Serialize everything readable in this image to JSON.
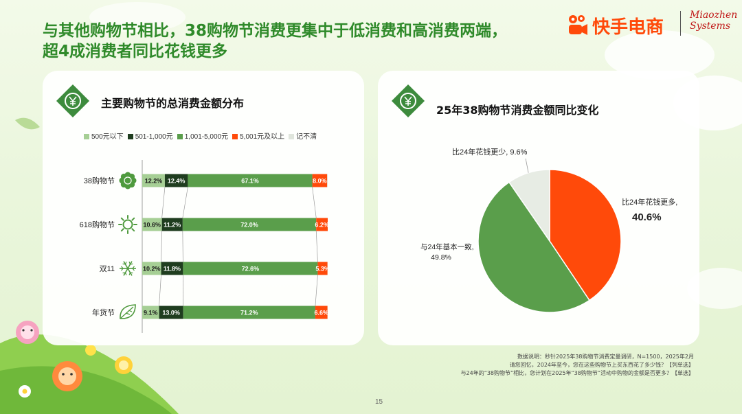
{
  "headline": {
    "line1": "与其他购物节相比，38购物节消费更集中于低消费和高消费两端，",
    "line2": "超4成消费者同比花钱更多"
  },
  "brand": {
    "name": "快手电商",
    "partner_line1": "Miaozhen",
    "partner_line2": "Systems"
  },
  "colors": {
    "title_green": "#2f8a2a",
    "badge_green": "#3d8b3d",
    "light_green": "#a6cf95",
    "dark_green": "#1f3d1f",
    "mid_green": "#5a9e4b",
    "orange": "#ff4a0a",
    "gray": "#dfe5dc"
  },
  "left_panel": {
    "title": "主要购物节的总消费金额分布"
  },
  "right_panel": {
    "title": "25年38购物节消费金额同比变化"
  },
  "chart_data": [
    {
      "type": "bar",
      "orientation": "horizontal",
      "stacked": true,
      "title": "主要购物节的总消费金额分布",
      "categories": [
        "38购物节",
        "618购物节",
        "双11",
        "年货节"
      ],
      "series": [
        {
          "name": "500元以下",
          "values": [
            12.2,
            10.6,
            10.2,
            9.1
          ],
          "color": "#a6cf95",
          "label_color": "#1a1a1a"
        },
        {
          "name": "501-1,000元",
          "values": [
            12.4,
            11.2,
            11.8,
            13.0
          ],
          "color": "#1f3d1f",
          "label_color": "#ffffff"
        },
        {
          "name": "1,001-5,000元",
          "values": [
            67.1,
            72.0,
            72.6,
            71.2
          ],
          "color": "#5a9e4b",
          "label_color": "#ffffff"
        },
        {
          "name": "5,001元及以上",
          "values": [
            8.0,
            6.2,
            5.3,
            6.6
          ],
          "color": "#ff4a0a",
          "label_color": "#ffffff"
        },
        {
          "name": "记不清",
          "values": [
            0.3,
            0.0,
            0.1,
            0.1
          ],
          "color": "#dfe5dc",
          "label_color": "#333333"
        }
      ],
      "data_labels": [
        [
          "12.2%",
          "12.4%",
          "67.1%",
          "8.0%"
        ],
        [
          "10.6%",
          "11.2%",
          "72.0%",
          "6.2%"
        ],
        [
          "10.2%",
          "11.8%",
          "72.6%",
          "5.3%"
        ],
        [
          "9.1%",
          "13.0%",
          "71.2%",
          "6.6%"
        ]
      ],
      "category_icons": [
        "flower-icon",
        "sun-icon",
        "snowflake-icon",
        "leaf-icon"
      ],
      "xlim": [
        0,
        100
      ],
      "legend_position": "top"
    },
    {
      "type": "pie",
      "title": "25年38购物节消费金额同比变化",
      "start_angle": "12 o'clock",
      "direction": "clockwise",
      "slices": [
        {
          "label": "比24年花钱更多,",
          "value": 40.6,
          "value_label": "40.6%",
          "color": "#ff4a0a"
        },
        {
          "label": "与24年基本一致,",
          "value": 49.8,
          "value_label": "49.8%",
          "color": "#5a9e4b"
        },
        {
          "label": "比24年花钱更少, 9.6%",
          "value": 9.6,
          "value_label": "",
          "color": "#e7ece4"
        }
      ]
    }
  ],
  "footnote": {
    "line1": "数据说明：秒针2025年38购物节消费定量调研，N=1500，2025年2月",
    "line2": "请您回忆，2024年至今，您在这些购物节上买东西花了多少钱？【列单选】",
    "line3": "与24年的“38购物节”相比，您计划在2025年“38购物节”活动中购物的金额是否更多？【单选】"
  },
  "page_number": "15"
}
